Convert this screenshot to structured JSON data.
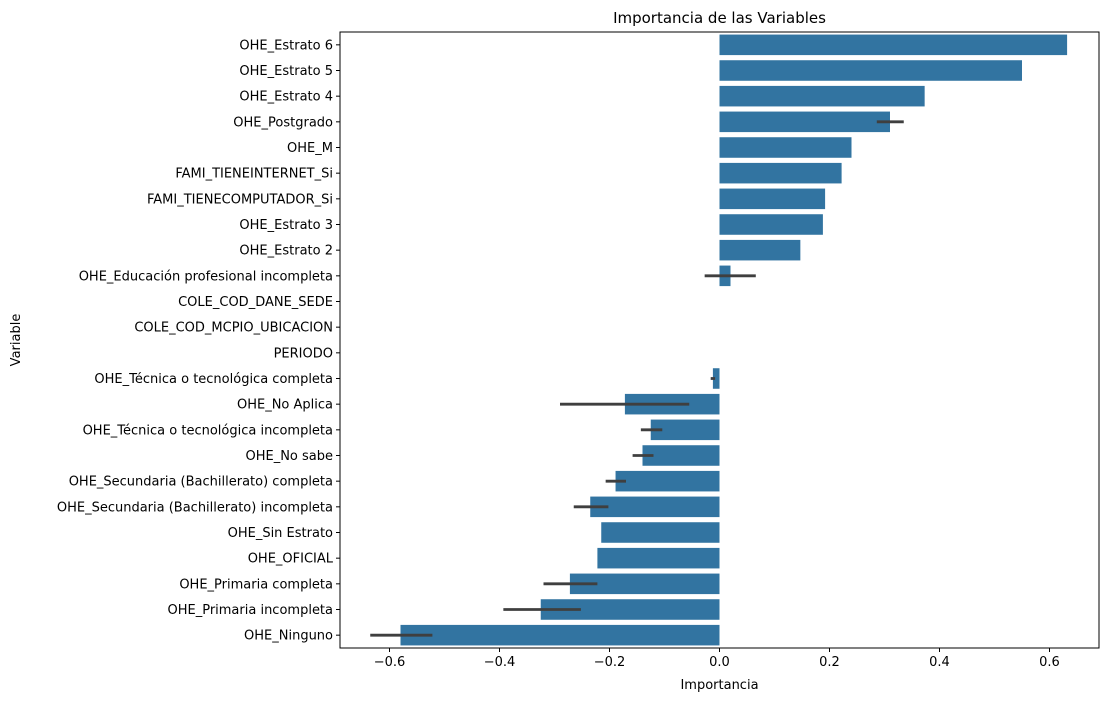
{
  "chart_data": {
    "type": "bar",
    "orientation": "horizontal",
    "title": "Importancia de las Variables",
    "xlabel": "Importancia",
    "ylabel": "Variable",
    "xlim": [
      -0.69,
      0.69
    ],
    "xticks": [
      -0.6,
      -0.4,
      -0.2,
      0.0,
      0.2,
      0.4,
      0.6
    ],
    "xtick_labels": [
      "−0.6",
      "−0.4",
      "−0.2",
      "0.0",
      "0.2",
      "0.4",
      "0.6"
    ],
    "bar_color": "#3274a1",
    "errorbar_color": "#3f3f3f",
    "grid": false,
    "categories": [
      "OHE_Estrato 6",
      "OHE_Estrato 5",
      "OHE_Estrato 4",
      "OHE_Postgrado",
      "OHE_M",
      "FAMI_TIENEINTERNET_Si",
      "FAMI_TIENECOMPUTADOR_Si",
      "OHE_Estrato 3",
      "OHE_Estrato 2",
      "OHE_Educación profesional incompleta",
      "COLE_COD_DANE_SEDE",
      "COLE_COD_MCPIO_UBICACION",
      "PERIODO",
      "OHE_Técnica o tecnológica completa",
      "OHE_No Aplica",
      "OHE_Técnica o tecnológica incompleta",
      "OHE_No sabe",
      "OHE_Secundaria (Bachillerato) completa",
      "OHE_Secundaria (Bachillerato) incompleta",
      "OHE_Sin Estrato",
      "OHE_OFICIAL",
      "OHE_Primaria completa",
      "OHE_Primaria incompleta",
      "OHE_Ninguno"
    ],
    "values": [
      0.632,
      0.55,
      0.373,
      0.31,
      0.24,
      0.222,
      0.192,
      0.188,
      0.147,
      0.02,
      0.0,
      0.0,
      0.0,
      -0.012,
      -0.172,
      -0.125,
      -0.14,
      -0.189,
      -0.235,
      -0.215,
      -0.222,
      -0.272,
      -0.325,
      -0.58
    ],
    "errors": [
      null,
      null,
      null,
      [
        0.286,
        0.335
      ],
      null,
      null,
      null,
      null,
      null,
      [
        -0.027,
        0.066
      ],
      null,
      null,
      null,
      [
        -0.016,
        -0.008
      ],
      [
        -0.29,
        -0.055
      ],
      [
        -0.143,
        -0.104
      ],
      [
        -0.158,
        -0.12
      ],
      [
        -0.207,
        -0.17
      ],
      [
        -0.265,
        -0.202
      ],
      null,
      null,
      [
        -0.32,
        -0.222
      ],
      [
        -0.393,
        -0.252
      ],
      [
        -0.635,
        -0.522
      ]
    ]
  }
}
